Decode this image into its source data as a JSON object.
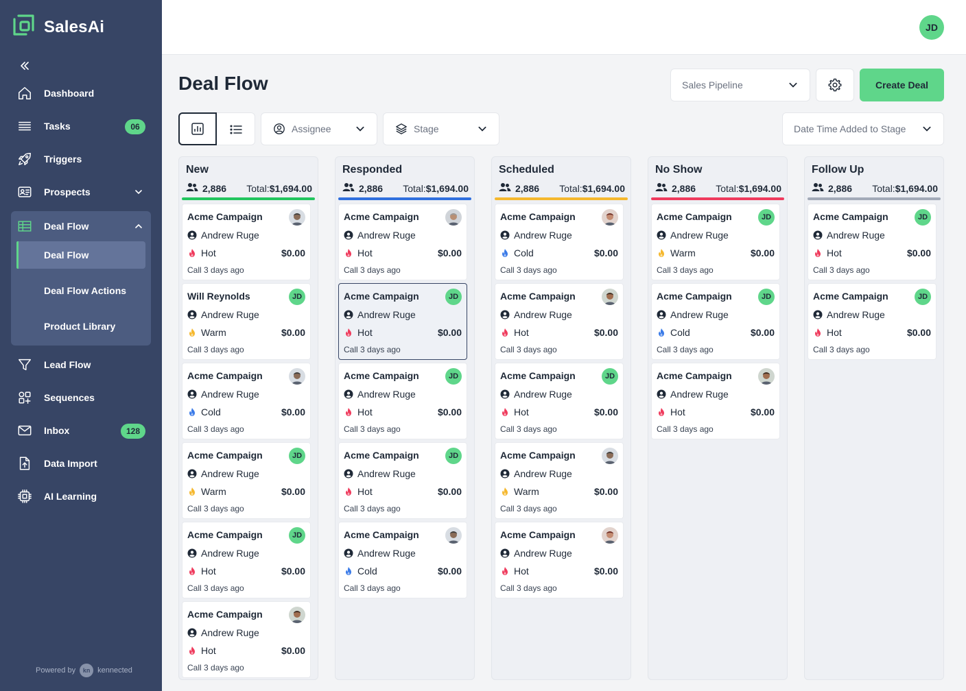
{
  "app": {
    "name": "SalesAi"
  },
  "sidebar": {
    "items": [
      {
        "key": "dashboard",
        "label": "Dashboard",
        "icon": "home-icon"
      },
      {
        "key": "tasks",
        "label": "Tasks",
        "icon": "list-icon",
        "badge": "06"
      },
      {
        "key": "triggers",
        "label": "Triggers",
        "icon": "rocket-icon"
      },
      {
        "key": "prospects",
        "label": "Prospects",
        "icon": "id-card-icon"
      },
      {
        "key": "deal-flow",
        "label": "Deal Flow",
        "icon": "table-icon"
      },
      {
        "key": "lead-flow",
        "label": "Lead Flow",
        "icon": "funnel-icon"
      },
      {
        "key": "sequences",
        "label": "Sequences",
        "icon": "grid-plus-icon"
      },
      {
        "key": "inbox",
        "label": "Inbox",
        "icon": "mail-icon",
        "badge": "128"
      },
      {
        "key": "data-import",
        "label": "Data Import",
        "icon": "file-upload-icon"
      },
      {
        "key": "ai-learning",
        "label": "AI Learning",
        "icon": "chip-icon"
      }
    ],
    "deal_flow_sub": [
      "Deal Flow",
      "Deal Flow Actions",
      "Product Library"
    ],
    "powered_by": "Powered by",
    "powered_brand": "kennected",
    "powered_logo": "kn"
  },
  "header": {
    "user_initials": "JD",
    "title": "Deal Flow",
    "pipeline_select": "Sales Pipeline",
    "create_button": "Create Deal",
    "assignee_filter": "Assignee",
    "stage_filter": "Stage",
    "sort_select": "Date Time Added to Stage"
  },
  "colors": {
    "accent": "#5fd68a",
    "sidebar": "#374565",
    "hot": "#ef3b5d",
    "warm": "#f5b82e",
    "cold": "#3b7be8"
  },
  "columns": [
    {
      "title": "New",
      "count": "2,886",
      "total_label": "Total:",
      "total": "$1,694.00",
      "color": "#22c55e",
      "cards": [
        {
          "title": "Acme Campaign",
          "person": "Andrew Ruge",
          "temp": "Hot",
          "amount": "$0.00",
          "meta": "Call 3 days ago",
          "avatar": "photo-a"
        },
        {
          "title": "Will Reynolds",
          "person": "Andrew Ruge",
          "temp": "Warm",
          "amount": "$0.00",
          "meta": "Call 3 days ago",
          "avatar": "JD"
        },
        {
          "title": "Acme Campaign",
          "person": "Andrew Ruge",
          "temp": "Cold",
          "amount": "$0.00",
          "meta": "Call 3 days ago",
          "avatar": "photo-a"
        },
        {
          "title": "Acme Campaign",
          "person": "Andrew Ruge",
          "temp": "Warm",
          "amount": "$0.00",
          "meta": "Call 3 days ago",
          "avatar": "JD"
        },
        {
          "title": "Acme Campaign",
          "person": "Andrew Ruge",
          "temp": "Hot",
          "amount": "$0.00",
          "meta": "Call 3 days ago",
          "avatar": "JD"
        },
        {
          "title": "Acme Campaign",
          "person": "Andrew Ruge",
          "temp": "Hot",
          "amount": "$0.00",
          "meta": "Call 3 days ago",
          "avatar": "photo-c"
        }
      ]
    },
    {
      "title": "Responded",
      "count": "2,886",
      "total_label": "Total:",
      "total": "$1,694.00",
      "color": "#2f6fde",
      "cards": [
        {
          "title": "Acme Campaign",
          "person": "Andrew Ruge",
          "temp": "Hot",
          "amount": "$0.00",
          "meta": "Call 3 days ago",
          "avatar": "photo-b"
        },
        {
          "title": "Acme Campaign",
          "person": "Andrew Ruge",
          "temp": "Hot",
          "amount": "$0.00",
          "meta": "Call 3 days ago",
          "avatar": "JD",
          "selected": true
        },
        {
          "title": "Acme Campaign",
          "person": "Andrew Ruge",
          "temp": "Hot",
          "amount": "$0.00",
          "meta": "Call 3 days ago",
          "avatar": "JD"
        },
        {
          "title": "Acme Campaign",
          "person": "Andrew Ruge",
          "temp": "Hot",
          "amount": "$0.00",
          "meta": "Call 3 days ago",
          "avatar": "JD"
        },
        {
          "title": "Acme Campaign",
          "person": "Andrew Ruge",
          "temp": "Cold",
          "amount": "$0.00",
          "meta": "Call 3 days ago",
          "avatar": "photo-a"
        }
      ]
    },
    {
      "title": "Scheduled",
      "count": "2,886",
      "total_label": "Total:",
      "total": "$1,694.00",
      "color": "#f5b82e",
      "cards": [
        {
          "title": "Acme Campaign",
          "person": "Andrew Ruge",
          "temp": "Cold",
          "amount": "$0.00",
          "meta": "Call 3 days ago",
          "avatar": "photo-d"
        },
        {
          "title": "Acme Campaign",
          "person": "Andrew Ruge",
          "temp": "Hot",
          "amount": "$0.00",
          "meta": "Call 3 days ago",
          "avatar": "photo-c"
        },
        {
          "title": "Acme Campaign",
          "person": "Andrew Ruge",
          "temp": "Hot",
          "amount": "$0.00",
          "meta": "Call 3 days ago",
          "avatar": "JD"
        },
        {
          "title": "Acme Campaign",
          "person": "Andrew Ruge",
          "temp": "Warm",
          "amount": "$0.00",
          "meta": "Call 3 days ago",
          "avatar": "photo-a"
        },
        {
          "title": "Acme Campaign",
          "person": "Andrew Ruge",
          "temp": "Hot",
          "amount": "$0.00",
          "meta": "Call 3 days ago",
          "avatar": "photo-d"
        }
      ]
    },
    {
      "title": "No Show",
      "count": "2,886",
      "total_label": "Total:",
      "total": "$1,694.00",
      "color": "#ef3b5d",
      "cards": [
        {
          "title": "Acme Campaign",
          "person": "Andrew Ruge",
          "temp": "Warm",
          "amount": "$0.00",
          "meta": "Call 3 days ago",
          "avatar": "JD"
        },
        {
          "title": "Acme Campaign",
          "person": "Andrew Ruge",
          "temp": "Cold",
          "amount": "$0.00",
          "meta": "Call 3 days ago",
          "avatar": "JD"
        },
        {
          "title": "Acme Campaign",
          "person": "Andrew Ruge",
          "temp": "Hot",
          "amount": "$0.00",
          "meta": "Call 3 days ago",
          "avatar": "photo-c"
        }
      ]
    },
    {
      "title": "Follow Up",
      "count": "2,886",
      "total_label": "Total:",
      "total": "$1,694.00",
      "color": "#a3aab8",
      "cards": [
        {
          "title": "Acme Campaign",
          "person": "Andrew Ruge",
          "temp": "Hot",
          "amount": "$0.00",
          "meta": "Call 3 days ago",
          "avatar": "JD"
        },
        {
          "title": "Acme Campaign",
          "person": "Andrew Ruge",
          "temp": "Hot",
          "amount": "$0.00",
          "meta": "Call 3 days ago",
          "avatar": "JD"
        }
      ]
    }
  ]
}
